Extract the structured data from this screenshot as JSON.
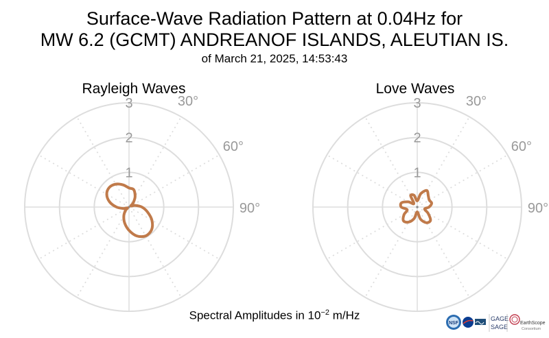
{
  "header": {
    "title_line1": "Surface-Wave Radiation Pattern at 0.04Hz for",
    "title_line2": "MW 6.2 (GCMT) ANDREANOF ISLANDS, ALEUTIAN IS.",
    "subtitle": "of March 21, 2025, 14:53:43"
  },
  "footer": {
    "label_prefix": "Spectral Amplitudes in ",
    "label_base": "10",
    "label_exp": "−2",
    "label_unit": " m/Hz"
  },
  "logos": {
    "nsf": "NSF",
    "gage": "GAGE",
    "sage": "SAGE",
    "earthscope": "EarthScope",
    "consortium": "Consortium"
  },
  "colors": {
    "pattern": "#c07a4a",
    "grid": "#dddddd",
    "tick": "#999999"
  },
  "chart_data": [
    {
      "type": "polar",
      "title": "Rayleigh Waves",
      "r_ticks": [
        1,
        2,
        3
      ],
      "angle_ticks": [
        "30°",
        "60°",
        "90°"
      ],
      "rmax": 3,
      "theta_deg": [
        0,
        15,
        30,
        45,
        60,
        75,
        90,
        105,
        120,
        135,
        150,
        165,
        180,
        195,
        210,
        225,
        240,
        255,
        270,
        285,
        300,
        315,
        330,
        345
      ],
      "r": [
        0.55,
        0.52,
        0.35,
        0.17,
        0.06,
        0.18,
        0.37,
        0.55,
        0.76,
        0.92,
        0.96,
        0.86,
        0.67,
        0.48,
        0.3,
        0.15,
        0.05,
        0.16,
        0.36,
        0.58,
        0.74,
        0.8,
        0.76,
        0.66
      ]
    },
    {
      "type": "polar",
      "title": "Love Waves",
      "r_ticks": [
        1,
        2,
        3
      ],
      "angle_ticks": [
        "30°",
        "60°",
        "90°"
      ],
      "rmax": 3,
      "theta_deg": [
        0,
        15,
        30,
        45,
        60,
        75,
        90,
        105,
        120,
        135,
        150,
        165,
        180,
        195,
        210,
        225,
        240,
        255,
        270,
        285,
        300,
        315,
        330,
        345
      ],
      "r": [
        0.18,
        0.4,
        0.55,
        0.45,
        0.4,
        0.43,
        0.34,
        0.22,
        0.36,
        0.54,
        0.52,
        0.36,
        0.14,
        0.34,
        0.5,
        0.56,
        0.44,
        0.3,
        0.46,
        0.47,
        0.3,
        0.14,
        0.38,
        0.35
      ]
    }
  ]
}
